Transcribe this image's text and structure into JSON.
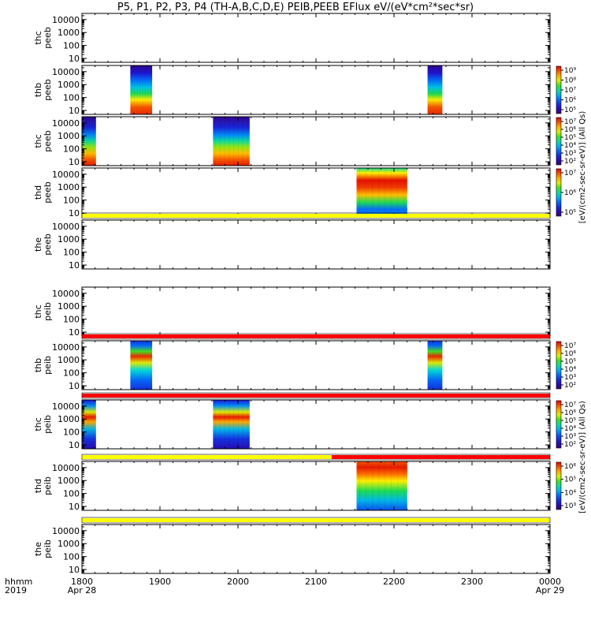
{
  "title": "P5, P1, P2, P3, P4 (TH-A,B,C,D,E) PEIB,PEEB EFlux eV/(eV*cm²*sec*sr)",
  "chart_data": {
    "type": "heatmap",
    "time_axis": {
      "row_label_1": "hhmm",
      "row_label_2": "2019",
      "range_hhmm": [
        1800,
        2400
      ],
      "ticks": [
        {
          "value": 0,
          "label": "1800",
          "sub": "Apr 28"
        },
        {
          "value": 1,
          "label": "1900",
          "sub": ""
        },
        {
          "value": 2,
          "label": "2000",
          "sub": ""
        },
        {
          "value": 3,
          "label": "2100",
          "sub": ""
        },
        {
          "value": 4,
          "label": "2200",
          "sub": ""
        },
        {
          "value": 5,
          "label": "2300",
          "sub": ""
        },
        {
          "value": 6,
          "label": "0000",
          "sub": "Apr 29"
        }
      ]
    },
    "energy_axis": {
      "scale": "log",
      "range_eV": [
        5,
        30000
      ],
      "ticks": [
        {
          "value": 10,
          "label": "10"
        },
        {
          "value": 100,
          "label": "100"
        },
        {
          "value": 1000,
          "label": "1000"
        },
        {
          "value": 10000,
          "label": "10000"
        }
      ]
    },
    "panels": [
      {
        "probe": "thc",
        "species": "peeb",
        "blocks": [],
        "colorbar": null
      },
      {
        "probe": "thb",
        "species": "peeb",
        "blocks": [
          {
            "start_h": 0.62,
            "end_h": 0.9,
            "pattern": "electron-warm"
          },
          {
            "start_h": 4.43,
            "end_h": 4.62,
            "pattern": "electron-warm"
          }
        ],
        "colorbar": {
          "labels": [
            "10⁹",
            "10⁸",
            "10⁷",
            "10⁶",
            "10⁵"
          ],
          "exps": [
            9,
            8,
            7,
            6,
            5
          ]
        }
      },
      {
        "probe": "thc",
        "species": "peeb",
        "blocks": [
          {
            "start_h": 0,
            "end_h": 0.18,
            "pattern": "electron-hot"
          },
          {
            "start_h": 1.68,
            "end_h": 2.15,
            "pattern": "electron-hot"
          }
        ],
        "colorbar": {
          "labels": [
            "10⁷",
            "10⁶",
            "10⁵",
            "10⁴",
            "10³",
            "10²"
          ],
          "exps": [
            7,
            6,
            5,
            4,
            3,
            2
          ]
        }
      },
      {
        "probe": "thd",
        "species": "peeb",
        "blocks": [
          {
            "start_h": 3.52,
            "end_h": 4.17,
            "pattern": "electron-sheet"
          }
        ],
        "colorbar": {
          "labels": [
            "10⁷",
            "10⁶",
            "10⁵"
          ],
          "exps": [
            7,
            6,
            5
          ]
        }
      },
      {
        "probe": "the",
        "species": "peeb",
        "blocks": [],
        "colorbar": null
      },
      {
        "probe": "thc",
        "species": "peib",
        "blocks": [],
        "colorbar": null
      },
      {
        "probe": "thb",
        "species": "peib",
        "blocks": [
          {
            "start_h": 0.62,
            "end_h": 0.9,
            "pattern": "ion"
          },
          {
            "start_h": 4.43,
            "end_h": 4.62,
            "pattern": "ion"
          }
        ],
        "colorbar": {
          "labels": [
            "10⁷",
            "10⁶",
            "10⁵",
            "10⁴",
            "10³",
            "10²"
          ],
          "exps": [
            7,
            6,
            5,
            4,
            3,
            2
          ]
        }
      },
      {
        "probe": "thc",
        "species": "peib",
        "blocks": [
          {
            "start_h": 0,
            "end_h": 0.18,
            "pattern": "ion-hot"
          },
          {
            "start_h": 1.68,
            "end_h": 2.15,
            "pattern": "ion-hot"
          }
        ],
        "colorbar": {
          "labels": [
            "10⁷",
            "10⁶",
            "10⁵",
            "10⁴",
            "10³",
            "10²"
          ],
          "exps": [
            7,
            6,
            5,
            4,
            3,
            2
          ]
        }
      },
      {
        "probe": "thd",
        "species": "peib",
        "blocks": [
          {
            "start_h": 3.52,
            "end_h": 4.17,
            "pattern": "ion-warm"
          }
        ],
        "colorbar": {
          "labels": [
            "10⁶",
            "10⁵",
            "10⁴",
            "10³"
          ],
          "exps": [
            6,
            5,
            4,
            3
          ]
        }
      },
      {
        "probe": "the",
        "species": "peib",
        "blocks": [],
        "colorbar": null
      }
    ],
    "mode_bars": [
      {
        "after_panel": 4,
        "segments": [
          {
            "start_h": 0,
            "end_h": 6,
            "color": "#ffff00"
          }
        ]
      },
      {
        "after_panel": 6,
        "segments": [
          {
            "start_h": 0,
            "end_h": 6,
            "color": "#ff0000"
          }
        ]
      },
      {
        "after_panel": 7,
        "segments": [
          {
            "start_h": 0,
            "end_h": 6,
            "color": "#ff0000"
          }
        ]
      },
      {
        "after_panel": 8,
        "segments": [
          {
            "start_h": 0,
            "end_h": 3.2,
            "color": "#ffff00"
          },
          {
            "start_h": 3.2,
            "end_h": 6,
            "color": "#ff0000"
          }
        ]
      },
      {
        "after_panel": 9,
        "segments": [
          {
            "start_h": 0,
            "end_h": 6,
            "color": "#ffff00"
          }
        ]
      }
    ],
    "colorbar_groups": [
      {
        "label": "[eV/(cm2-sec-sr-eV)] (All Qs)",
        "from_panel": 1,
        "to_panel": 4
      },
      {
        "label": "[eV/(cm2-sec-sr-eV)] (All Qs)",
        "from_panel": 6,
        "to_panel": 9
      }
    ]
  }
}
